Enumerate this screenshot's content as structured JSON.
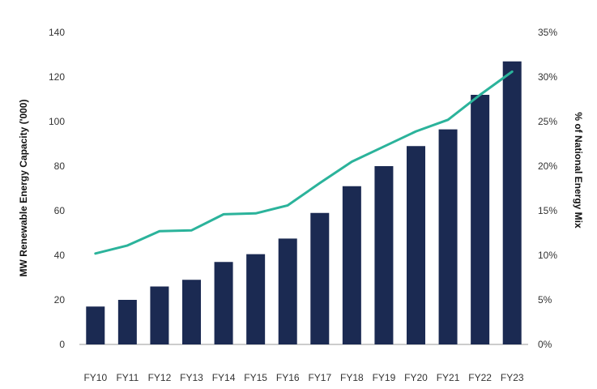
{
  "chart_data": {
    "type": "bar",
    "title": "",
    "categories": [
      "FY10",
      "FY11",
      "FY12",
      "FY13",
      "FY14",
      "FY15",
      "FY16",
      "FY17",
      "FY18",
      "FY19",
      "FY20",
      "FY21",
      "FY22",
      "FY23"
    ],
    "series": [
      {
        "name": "",
        "type": "bar",
        "axis": "left",
        "color": "#1b2a52",
        "values": [
          17,
          20,
          26,
          29,
          37,
          40.5,
          47.5,
          59,
          71,
          80,
          89,
          96.5,
          112,
          127
        ]
      },
      {
        "name": "",
        "type": "line",
        "axis": "right",
        "color": "#2bb39b",
        "values": [
          10.2,
          11.1,
          12.7,
          12.8,
          14.6,
          14.7,
          15.6,
          18.1,
          20.5,
          22.2,
          23.9,
          25.2,
          28.0,
          30.6
        ]
      }
    ],
    "y_left": {
      "label": "MW Renewable Energy Capacity ('000)",
      "range": [
        0,
        140
      ],
      "ticks": [
        "0",
        "20",
        "40",
        "60",
        "80",
        "100",
        "120",
        "140"
      ]
    },
    "y_right": {
      "label": "% of National Energy Mix",
      "range": [
        0,
        35
      ],
      "ticks": [
        "0%",
        "5%",
        "10%",
        "15%",
        "20%",
        "25%",
        "30%",
        "35%"
      ]
    },
    "grid": false,
    "legend": "none"
  }
}
